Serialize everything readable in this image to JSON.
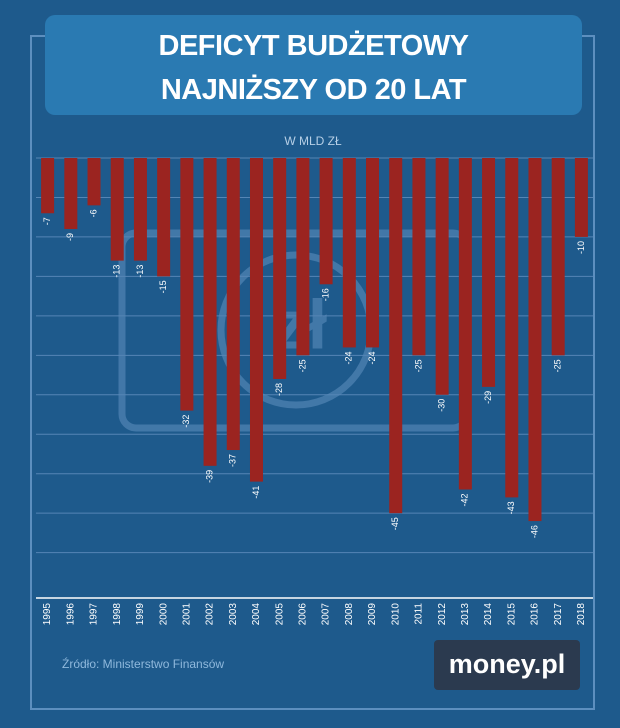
{
  "chart_data": {
    "type": "bar",
    "title": "DEFICYT BUDŻETOWY NAJNIŻSZY OD 20 LAT",
    "subtitle": "W MLD ZŁ",
    "categories": [
      "1995",
      "1996",
      "1997",
      "1998",
      "1999",
      "2000",
      "2001",
      "2002",
      "2003",
      "2004",
      "2005",
      "2006",
      "2007",
      "2008",
      "2009",
      "2010",
      "2011",
      "2012",
      "2013",
      "2014",
      "2015",
      "2016",
      "2017",
      "2018"
    ],
    "values": [
      -7,
      -9,
      -6,
      -13,
      -13,
      -15,
      -32,
      -39,
      -37,
      -41,
      -28,
      -25,
      -16,
      -24,
      -24,
      -45,
      -25,
      -30,
      -42,
      -29,
      -43,
      -46,
      -25,
      -10
    ],
    "color": "#9b2420",
    "ylim": [
      0,
      -56
    ],
    "yticks": [
      0,
      -5,
      -10,
      -15,
      -20,
      -25,
      -30,
      -35,
      -40,
      -45,
      -50
    ],
    "grid": true,
    "source": "Źródło: Ministerstwo Finansów",
    "logo": "money.pl"
  }
}
